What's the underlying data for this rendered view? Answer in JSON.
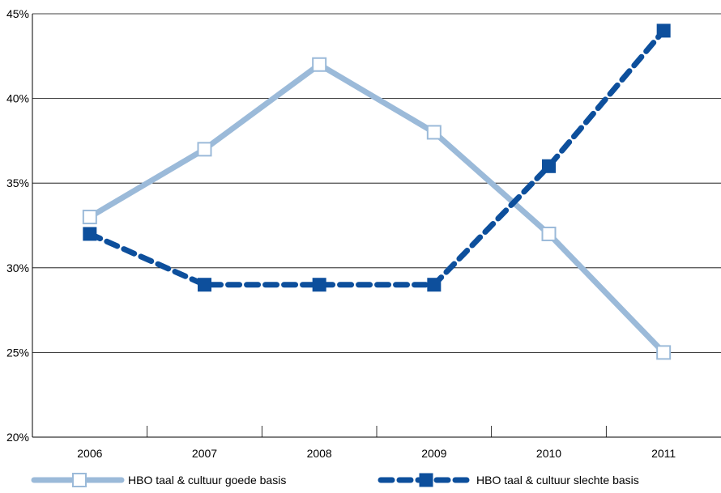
{
  "chart_data": {
    "type": "line",
    "title": "",
    "xlabel": "",
    "ylabel": "",
    "categories": [
      "2006",
      "2007",
      "2008",
      "2009",
      "2010",
      "2011"
    ],
    "y_ticks": [
      20,
      25,
      30,
      35,
      40,
      45
    ],
    "y_tick_labels": [
      "20%",
      "25%",
      "30%",
      "35%",
      "40%",
      "45%"
    ],
    "ylim": [
      20,
      45
    ],
    "grid": "horizontal",
    "legend_position": "bottom",
    "series": [
      {
        "name": "HBO taal & cultuur goede basis",
        "values": [
          33,
          37,
          42,
          38,
          32,
          25
        ],
        "color": "#9bbad9",
        "line_style": "solid",
        "marker": "hollow-square"
      },
      {
        "name": "HBO taal & cultuur slechte basis",
        "values": [
          32,
          29,
          29,
          29,
          36,
          44
        ],
        "color": "#0d4f9c",
        "line_style": "dashed",
        "marker": "filled-square"
      }
    ]
  }
}
